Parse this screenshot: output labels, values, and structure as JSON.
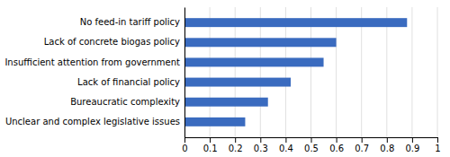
{
  "chart_data": {
    "type": "bar",
    "orientation": "horizontal",
    "categories": [
      "Unclear and complex legislative issues",
      "Bureaucratic complexity",
      "Lack of financial policy",
      "Insufficient attention from government",
      "Lack of concrete biogas policy",
      "No feed-in tariff policy"
    ],
    "values": [
      0.24,
      0.33,
      0.42,
      0.55,
      0.6,
      0.88
    ],
    "color": "#3a6bbf",
    "xlim": [
      0,
      1
    ],
    "xticks": [
      0,
      0.1,
      0.2,
      0.3,
      0.4,
      0.5,
      0.6,
      0.7,
      0.8,
      0.9,
      1
    ],
    "grid": true
  }
}
